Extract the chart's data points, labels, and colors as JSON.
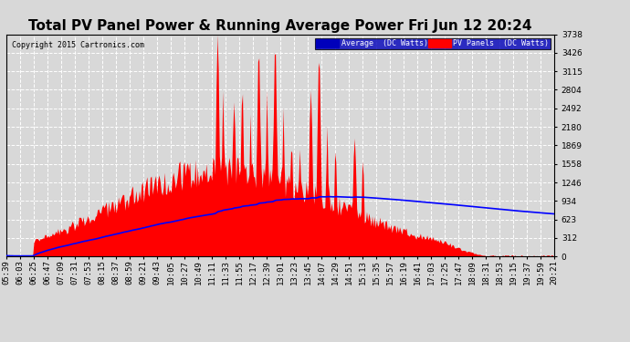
{
  "title": "Total PV Panel Power & Running Average Power Fri Jun 12 20:24",
  "copyright": "Copyright 2015 Cartronics.com",
  "legend_avg": "Average  (DC Watts)",
  "legend_pv": "PV Panels  (DC Watts)",
  "ymin": 0.0,
  "ymax": 3738.0,
  "yticks": [
    0.0,
    311.5,
    623.0,
    934.5,
    1246.0,
    1557.5,
    1869.0,
    2180.5,
    2492.0,
    2803.5,
    3115.0,
    3426.5,
    3738.0
  ],
  "bg_color": "#d8d8d8",
  "plot_bg_color": "#d8d8d8",
  "grid_color": "#ffffff",
  "pv_color": "#ff0000",
  "avg_color": "#0000ff",
  "title_fontsize": 11,
  "tick_fontsize": 6.5,
  "x_tick_labels": [
    "05:39",
    "06:03",
    "06:25",
    "06:47",
    "07:09",
    "07:31",
    "07:53",
    "08:15",
    "08:37",
    "08:59",
    "09:21",
    "09:43",
    "10:05",
    "10:27",
    "10:49",
    "11:11",
    "11:33",
    "11:55",
    "12:17",
    "12:39",
    "13:01",
    "13:23",
    "13:45",
    "14:07",
    "14:29",
    "14:51",
    "15:13",
    "15:35",
    "15:57",
    "16:19",
    "16:41",
    "17:03",
    "17:25",
    "17:47",
    "18:09",
    "18:31",
    "18:53",
    "19:15",
    "19:37",
    "19:59",
    "20:21"
  ]
}
